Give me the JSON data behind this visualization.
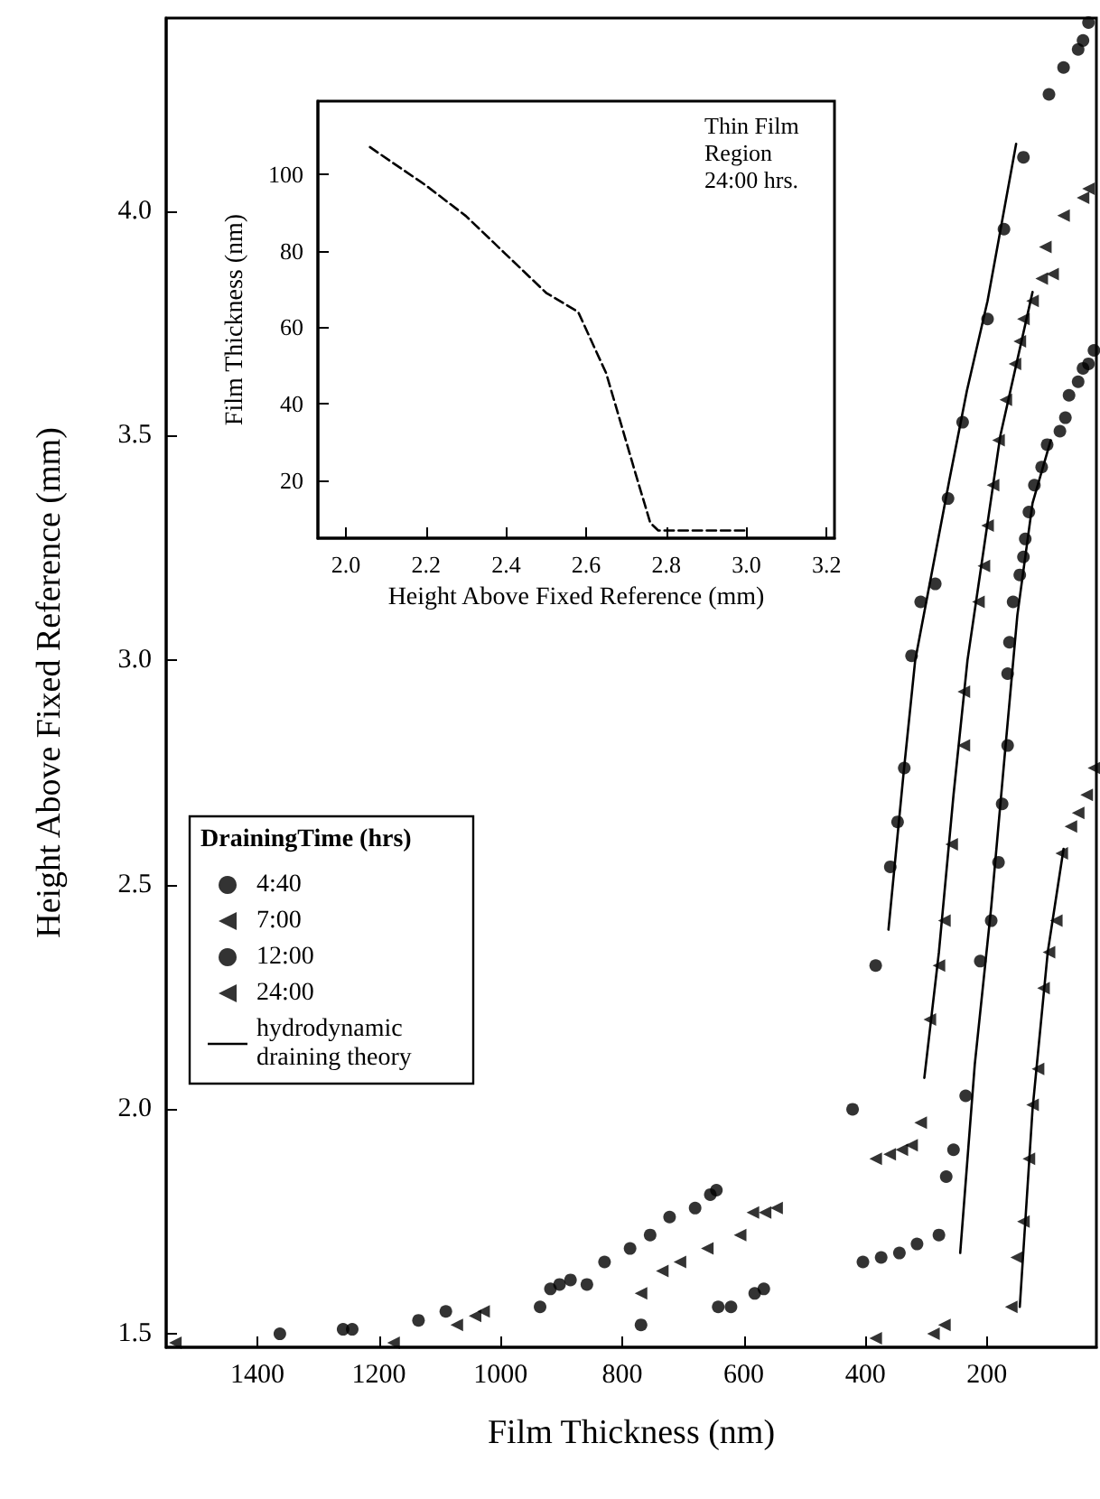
{
  "chart_data": [
    {
      "type": "scatter",
      "xlabel": "Film Thickness (nm)",
      "ylabel": "Height Above Fixed Reference (mm)",
      "legend_title": "DrainingTime (hrs)",
      "legend": "left",
      "grid": false,
      "xlim": [
        1550,
        20
      ],
      "xticks": [
        1400,
        1200,
        1000,
        800,
        600,
        400,
        200
      ],
      "ylim": [
        1.47,
        4.43
      ],
      "yticks": [
        1.5,
        {
          "value": 2,
          "label": "2.0"
        },
        2.5,
        {
          "value": 3,
          "label": "3.0"
        },
        3.5,
        {
          "value": 4,
          "label": "4.0"
        }
      ],
      "series": [
        {
          "name": "4:40",
          "color": "#000000",
          "marker": "circle",
          "x": [
            1363,
            1259,
            1244,
            1135,
            1090,
            935,
            918,
            903,
            885,
            858,
            829,
            787,
            754,
            722,
            680,
            655,
            645,
            421,
            383,
            359,
            347,
            336,
            324,
            309,
            285,
            264,
            240,
            199,
            172,
            140,
            98,
            74,
            50,
            42,
            33
          ],
          "values": [
            1.5,
            1.51,
            1.51,
            1.53,
            1.55,
            1.56,
            1.6,
            1.61,
            1.62,
            1.61,
            1.66,
            1.69,
            1.72,
            1.76,
            1.78,
            1.81,
            1.82,
            2.0,
            2.32,
            2.54,
            2.64,
            2.76,
            3.01,
            3.13,
            3.17,
            3.36,
            3.53,
            3.76,
            3.96,
            4.12,
            4.26,
            4.32,
            4.36,
            4.38,
            4.42
          ]
        },
        {
          "name": "7:00",
          "color": "#000000",
          "marker": "triangle",
          "x": [
            1176,
            1072,
            1042,
            1028,
            769,
            734,
            705,
            660,
            606,
            585,
            565,
            546,
            383,
            360,
            340,
            324,
            309,
            294,
            279,
            270,
            258,
            238,
            238,
            214,
            205,
            199,
            190,
            181,
            169,
            154,
            146,
            140,
            125,
            110,
            104,
            92,
            74,
            42,
            33
          ],
          "values": [
            1.48,
            1.52,
            1.54,
            1.55,
            1.59,
            1.64,
            1.66,
            1.69,
            1.72,
            1.77,
            1.77,
            1.78,
            1.89,
            1.9,
            1.91,
            1.92,
            1.97,
            2.2,
            2.32,
            2.42,
            2.59,
            2.81,
            2.93,
            3.13,
            3.21,
            3.3,
            3.39,
            3.49,
            3.58,
            3.66,
            3.71,
            3.76,
            3.8,
            3.85,
            3.92,
            3.86,
            3.99,
            4.03,
            4.05
          ]
        },
        {
          "name": "12:00",
          "color": "#000000",
          "marker": "circle",
          "x": [
            769,
            642,
            621,
            582,
            567,
            404,
            374,
            344,
            315,
            279,
            267,
            255,
            235,
            211,
            193,
            181,
            175,
            166,
            166,
            163,
            157,
            146,
            140,
            137,
            131,
            122,
            110,
            101,
            80,
            71,
            65,
            50,
            42,
            33,
            24
          ],
          "values": [
            1.52,
            1.56,
            1.56,
            1.59,
            1.6,
            1.66,
            1.67,
            1.68,
            1.7,
            1.72,
            1.85,
            1.91,
            2.03,
            2.33,
            2.42,
            2.55,
            2.68,
            2.81,
            2.97,
            3.04,
            3.13,
            3.19,
            3.23,
            3.27,
            3.33,
            3.39,
            3.43,
            3.48,
            3.51,
            3.54,
            3.59,
            3.62,
            3.65,
            3.66,
            3.69
          ]
        },
        {
          "name": "24:00",
          "color": "#000000",
          "marker": "triangle",
          "x": [
            1535,
            383,
            288,
            270,
            160,
            151,
            140,
            131,
            125,
            116,
            107,
            98,
            86,
            77,
            62,
            50,
            36,
            24
          ],
          "values": [
            1.48,
            1.49,
            1.5,
            1.52,
            1.56,
            1.67,
            1.75,
            1.89,
            2.01,
            2.09,
            2.27,
            2.35,
            2.42,
            2.57,
            2.63,
            2.66,
            2.7,
            2.76
          ]
        },
        {
          "name": "hydrodynamic draining theory",
          "type": "line",
          "color": "#000000",
          "marker": "none",
          "line_style": "solid",
          "x": [
            362,
            337,
            318,
            290,
            262,
            233,
            199,
            152,
            null,
            303,
            279,
            255,
            232,
            205,
            178,
            125,
            null,
            244,
            220,
            193,
            170,
            150,
            125,
            95,
            null,
            146,
            125,
            100,
            74
          ],
          "values": [
            2.4,
            2.75,
            3.0,
            3.2,
            3.4,
            3.6,
            3.8,
            4.15,
            null,
            2.07,
            2.35,
            2.7,
            3.0,
            3.25,
            3.5,
            3.82,
            null,
            1.68,
            2.1,
            2.45,
            2.8,
            3.1,
            3.35,
            3.49,
            null,
            1.56,
            2.0,
            2.35,
            2.58
          ]
        }
      ]
    },
    {
      "type": "line",
      "xlabel": "Height Above Fixed Reference (mm)",
      "ylabel": "Film Thickness (nm)",
      "annotations": [
        "Thin Film Region 24:00 hrs."
      ],
      "grid": false,
      "line_style": "dashed",
      "marker": "none",
      "xlim": [
        1.93,
        3.22
      ],
      "xticks": [
        {
          "value": 2,
          "label": "2.0"
        },
        2.2,
        2.4,
        2.6,
        2.8,
        {
          "value": 3,
          "label": "3.0"
        },
        3.2
      ],
      "ylim": [
        5,
        119
      ],
      "yticks": [
        20,
        40,
        60,
        80,
        100
      ],
      "series": [
        {
          "color": "#000000",
          "x": [
            2.06,
            2.2,
            2.3,
            2.4,
            2.5,
            2.58,
            2.65,
            2.72,
            2.76,
            2.78,
            3.0
          ],
          "values": [
            107,
            97,
            89,
            79,
            69,
            64,
            48,
            23,
            9,
            7,
            7
          ]
        }
      ]
    }
  ]
}
